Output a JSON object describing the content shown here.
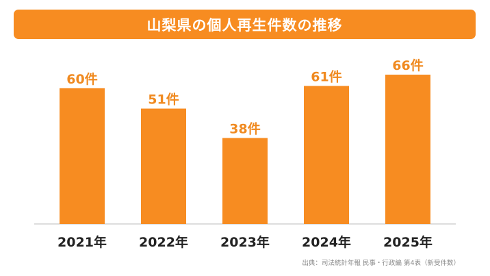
{
  "title": "山梨県の個人再生件数の推移",
  "source": "出典：司法統計年報 民事・行政編 第4表（新受件数）",
  "colors": {
    "bar": "#f78c21",
    "value_label": "#f08a20",
    "tick_label": "#222222",
    "axis": "#bbbbbb"
  },
  "chart_data": {
    "type": "bar",
    "categories": [
      "2021年",
      "2022年",
      "2023年",
      "2024年",
      "2025年"
    ],
    "values": [
      60,
      51,
      38,
      61,
      66
    ],
    "value_labels": [
      "60件",
      "51件",
      "38件",
      "61件",
      "66件"
    ],
    "ylim": [
      0,
      66
    ],
    "grid": false,
    "legend": "none"
  }
}
